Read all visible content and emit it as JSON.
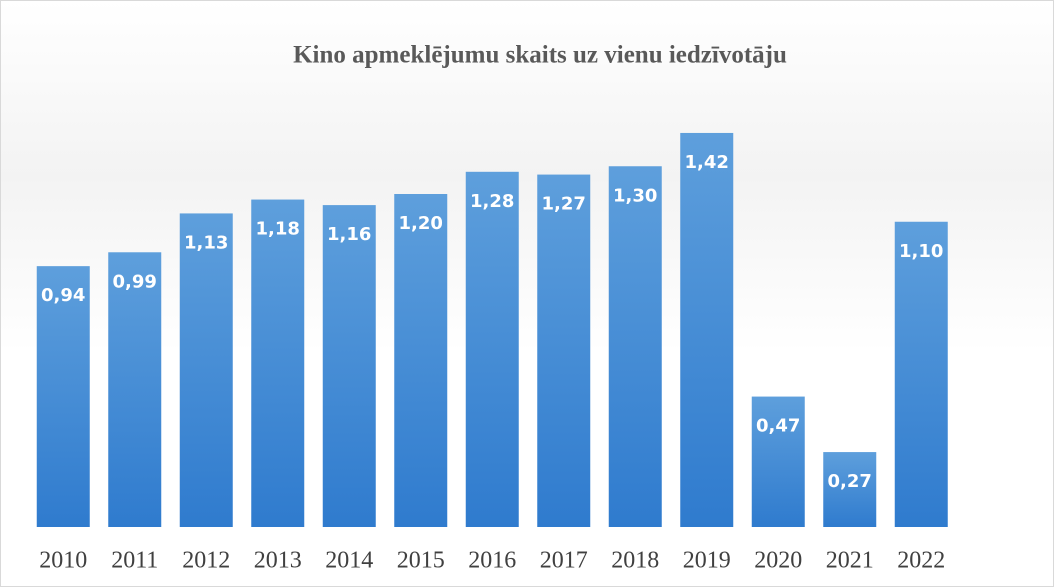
{
  "chart_data": {
    "type": "bar",
    "title": "Kino apmeklējumu skaits uz vienu iedzīvotāju",
    "categories": [
      "2010",
      "2011",
      "2012",
      "2013",
      "2014",
      "2015",
      "2016",
      "2017",
      "2018",
      "2019",
      "2020",
      "2021",
      "2022"
    ],
    "values": [
      0.94,
      0.99,
      1.13,
      1.18,
      1.16,
      1.2,
      1.28,
      1.27,
      1.3,
      1.42,
      0.47,
      0.27,
      1.1
    ],
    "value_labels": [
      "0,94",
      "0,99",
      "1,13",
      "1,18",
      "1,16",
      "1,20",
      "1,28",
      "1,27",
      "1,30",
      "1,42",
      "0,47",
      "0,27",
      "1,10"
    ],
    "color": "#3f88d6"
  }
}
